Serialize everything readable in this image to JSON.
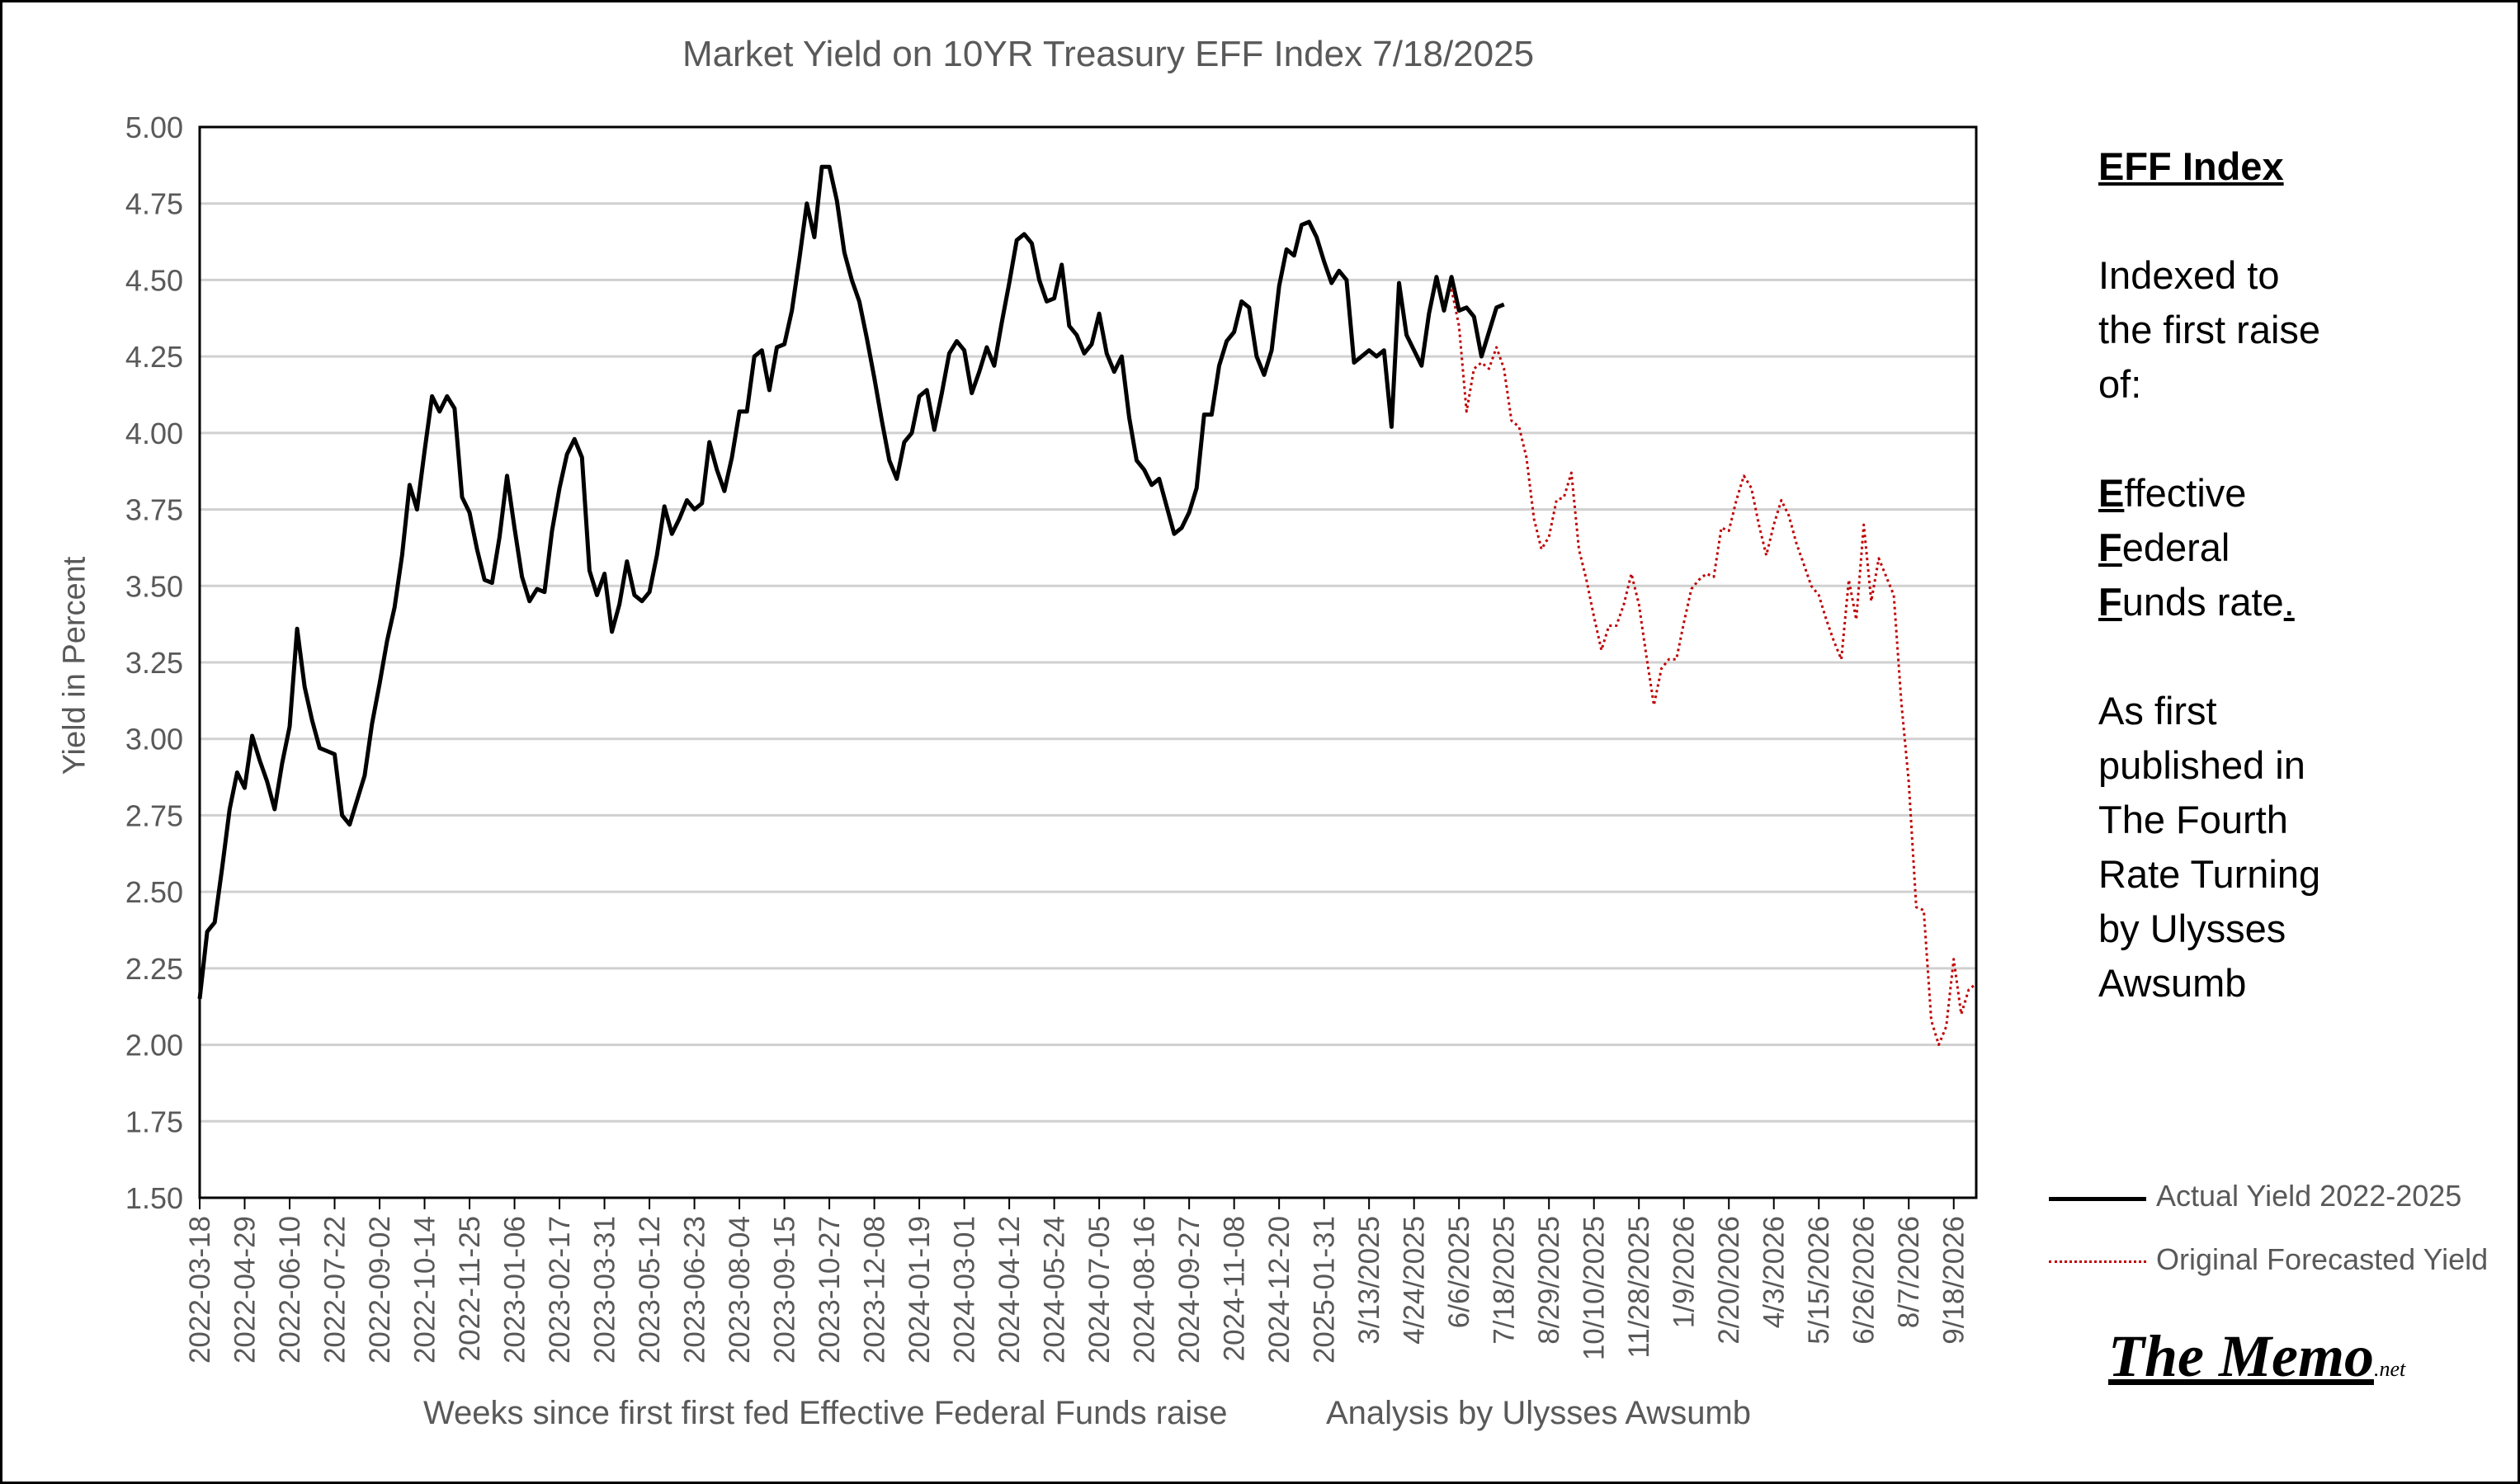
{
  "chart_data": {
    "type": "line",
    "title": "Market Yield on 10YR Treasury EFF Index 7/18/2025",
    "ylabel": "Yield in Percent",
    "xlabel": "Weeks since first first fed Effective Federal Funds raise",
    "xlabel_note": "Analysis by Ulysses Awsumb",
    "ylim": [
      1.5,
      5.0
    ],
    "yticks": [
      "5.00",
      "4.75",
      "4.50",
      "4.25",
      "4.00",
      "3.75",
      "3.50",
      "3.25",
      "3.00",
      "2.75",
      "2.50",
      "2.25",
      "2.00",
      "1.75",
      "1.50"
    ],
    "x_weeks_total": 237,
    "xticks": [
      {
        "week": 0,
        "label": "2022-03-18"
      },
      {
        "week": 6,
        "label": "2022-04-29"
      },
      {
        "week": 12,
        "label": "2022-06-10"
      },
      {
        "week": 18,
        "label": "2022-07-22"
      },
      {
        "week": 24,
        "label": "2022-09-02"
      },
      {
        "week": 30,
        "label": "2022-10-14"
      },
      {
        "week": 36,
        "label": "2022-11-25"
      },
      {
        "week": 42,
        "label": "2023-01-06"
      },
      {
        "week": 48,
        "label": "2023-02-17"
      },
      {
        "week": 54,
        "label": "2023-03-31"
      },
      {
        "week": 60,
        "label": "2023-05-12"
      },
      {
        "week": 66,
        "label": "2023-06-23"
      },
      {
        "week": 72,
        "label": "2023-08-04"
      },
      {
        "week": 78,
        "label": "2023-09-15"
      },
      {
        "week": 84,
        "label": "2023-10-27"
      },
      {
        "week": 90,
        "label": "2023-12-08"
      },
      {
        "week": 96,
        "label": "2024-01-19"
      },
      {
        "week": 102,
        "label": "2024-03-01"
      },
      {
        "week": 108,
        "label": "2024-04-12"
      },
      {
        "week": 114,
        "label": "2024-05-24"
      },
      {
        "week": 120,
        "label": "2024-07-05"
      },
      {
        "week": 126,
        "label": "2024-08-16"
      },
      {
        "week": 132,
        "label": "2024-09-27"
      },
      {
        "week": 138,
        "label": "2024-11-08"
      },
      {
        "week": 144,
        "label": "2024-12-20"
      },
      {
        "week": 150,
        "label": "2025-01-31"
      },
      {
        "week": 156,
        "label": "3/13/2025"
      },
      {
        "week": 162,
        "label": "4/24/2025"
      },
      {
        "week": 168,
        "label": "6/6/2025"
      },
      {
        "week": 174,
        "label": "7/18/2025"
      },
      {
        "week": 180,
        "label": "8/29/2025"
      },
      {
        "week": 186,
        "label": "10/10/2025"
      },
      {
        "week": 192,
        "label": "11/28/2025"
      },
      {
        "week": 198,
        "label": "1/9/2026"
      },
      {
        "week": 204,
        "label": "2/20/2026"
      },
      {
        "week": 210,
        "label": "4/3/2026"
      },
      {
        "week": 216,
        "label": "5/15/2026"
      },
      {
        "week": 222,
        "label": "6/26/2026"
      },
      {
        "week": 228,
        "label": "8/7/2026"
      },
      {
        "week": 234,
        "label": "9/18/2026"
      }
    ],
    "grid": true,
    "legend_placement": "bottom-right, outside plot",
    "series": [
      {
        "name": "Actual Yield 2022-2025",
        "color": "#000000",
        "style": "solid",
        "x": [
          0,
          1,
          2,
          3,
          4,
          5,
          6,
          7,
          8,
          9,
          10,
          11,
          12,
          13,
          14,
          15,
          16,
          17,
          18,
          19,
          20,
          21,
          22,
          23,
          24,
          25,
          26,
          27,
          28,
          29,
          30,
          31,
          32,
          33,
          34,
          35,
          36,
          37,
          38,
          39,
          40,
          41,
          42,
          43,
          44,
          45,
          46,
          47,
          48,
          49,
          50,
          51,
          52,
          53,
          54,
          55,
          56,
          57,
          58,
          59,
          60,
          61,
          62,
          63,
          64,
          65,
          66,
          67,
          68,
          69,
          70,
          71,
          72,
          73,
          74,
          75,
          76,
          77,
          78,
          79,
          80,
          81,
          82,
          83,
          84,
          85,
          86,
          87,
          88,
          89,
          90,
          91,
          92,
          93,
          94,
          95,
          96,
          97,
          98,
          99,
          100,
          101,
          102,
          103,
          104,
          105,
          106,
          107,
          108,
          109,
          110,
          111,
          112,
          113,
          114,
          115,
          116,
          117,
          118,
          119,
          120,
          121,
          122,
          123,
          124,
          125,
          126,
          127,
          128,
          129,
          130,
          131,
          132,
          133,
          134,
          135,
          136,
          137,
          138,
          139,
          140,
          141,
          142,
          143,
          144,
          145,
          146,
          147,
          148,
          149,
          150,
          151,
          152,
          153,
          154,
          155,
          156,
          157,
          158,
          159,
          160,
          161,
          162,
          163,
          164,
          165,
          166,
          167,
          168,
          169,
          170,
          171,
          172,
          173,
          174
        ],
        "y": [
          2.15,
          2.37,
          2.4,
          2.58,
          2.77,
          2.89,
          2.84,
          3.01,
          2.93,
          2.86,
          2.77,
          2.92,
          3.04,
          3.36,
          3.17,
          3.06,
          2.97,
          2.96,
          2.95,
          2.75,
          2.72,
          2.8,
          2.88,
          3.05,
          3.18,
          3.32,
          3.43,
          3.6,
          3.83,
          3.75,
          3.94,
          4.12,
          4.07,
          4.12,
          4.08,
          3.79,
          3.74,
          3.62,
          3.52,
          3.51,
          3.66,
          3.86,
          3.69,
          3.53,
          3.45,
          3.49,
          3.48,
          3.68,
          3.82,
          3.93,
          3.98,
          3.92,
          3.55,
          3.47,
          3.54,
          3.35,
          3.44,
          3.58,
          3.47,
          3.45,
          3.48,
          3.6,
          3.76,
          3.67,
          3.72,
          3.78,
          3.75,
          3.77,
          3.97,
          3.88,
          3.81,
          3.92,
          4.07,
          4.07,
          4.25,
          4.27,
          4.14,
          4.28,
          4.29,
          4.4,
          4.57,
          4.75,
          4.64,
          4.87,
          4.87,
          4.76,
          4.59,
          4.5,
          4.43,
          4.31,
          4.18,
          4.04,
          3.91,
          3.85,
          3.97,
          4.0,
          4.12,
          4.14,
          4.01,
          4.13,
          4.26,
          4.3,
          4.27,
          4.13,
          4.2,
          4.28,
          4.22,
          4.36,
          4.49,
          4.63,
          4.65,
          4.62,
          4.5,
          4.43,
          4.44,
          4.55,
          4.35,
          4.32,
          4.26,
          4.29,
          4.39,
          4.26,
          4.2,
          4.25,
          4.05,
          3.91,
          3.88,
          3.83,
          3.85,
          3.76,
          3.67,
          3.69,
          3.74,
          3.82,
          4.06,
          4.06,
          4.22,
          4.3,
          4.33,
          4.43,
          4.41,
          4.25,
          4.19,
          4.27,
          4.48,
          4.6,
          4.58,
          4.68,
          4.69,
          4.64,
          4.56,
          4.49,
          4.53,
          4.5,
          4.23,
          4.25,
          4.27,
          4.25,
          4.27,
          4.02,
          4.49,
          4.32,
          4.27,
          4.22,
          4.39,
          4.51,
          4.4,
          4.51,
          4.4,
          4.41,
          4.38,
          4.25,
          4.33,
          4.41,
          4.42
        ]
      },
      {
        "name": "Original Forecasted Yield",
        "color": "#C00000",
        "style": "dotted",
        "x": [
          167,
          168,
          169,
          170,
          171,
          172,
          173,
          174,
          175,
          176,
          177,
          178,
          179,
          180,
          181,
          182,
          183,
          184,
          185,
          186,
          187,
          188,
          189,
          190,
          191,
          192,
          193,
          194,
          195,
          196,
          197,
          198,
          199,
          200,
          201,
          202,
          203,
          204,
          205,
          206,
          207,
          208,
          209,
          210,
          211,
          212,
          213,
          214,
          215,
          216,
          217,
          218,
          219,
          220,
          221,
          222,
          223,
          224,
          225,
          226,
          227,
          228,
          229,
          230,
          231,
          232,
          233,
          234,
          235,
          236,
          237
        ],
        "y": [
          4.47,
          4.35,
          4.07,
          4.21,
          4.23,
          4.21,
          4.28,
          4.21,
          4.04,
          4.02,
          3.92,
          3.72,
          3.62,
          3.66,
          3.78,
          3.79,
          3.87,
          3.62,
          3.52,
          3.4,
          3.29,
          3.37,
          3.37,
          3.44,
          3.54,
          3.44,
          3.27,
          3.11,
          3.23,
          3.26,
          3.26,
          3.38,
          3.49,
          3.52,
          3.54,
          3.53,
          3.69,
          3.68,
          3.78,
          3.86,
          3.82,
          3.7,
          3.6,
          3.7,
          3.78,
          3.73,
          3.64,
          3.57,
          3.5,
          3.47,
          3.39,
          3.32,
          3.26,
          3.52,
          3.39,
          3.7,
          3.45,
          3.59,
          3.53,
          3.47,
          3.12,
          2.86,
          2.45,
          2.44,
          2.08,
          2.0,
          2.06,
          2.28,
          2.1,
          2.18,
          2.2
        ]
      }
    ]
  },
  "side_panel": {
    "heading": "EFF Index",
    "indexed_lines": [
      "Indexed to",
      "the first raise",
      "of:"
    ],
    "eff_lines": [
      {
        "initial": "E",
        "rest": "ffective"
      },
      {
        "initial": "F",
        "rest": "ederal"
      },
      {
        "initial": "F",
        "rest": "unds rate",
        "trail": "."
      }
    ],
    "published_lines": [
      "As first",
      "published in",
      "The Fourth",
      "Rate Turning",
      "by Ulysses",
      "Awsumb"
    ]
  },
  "logo": {
    "main": "The Memo",
    "suffix": ".net"
  }
}
